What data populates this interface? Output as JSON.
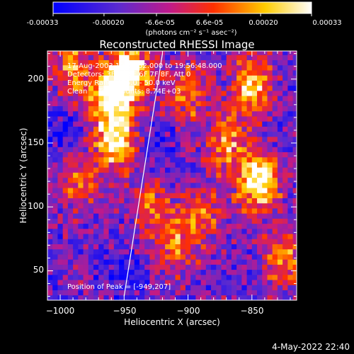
{
  "colorbar": {
    "ticks": [
      "-0.00033",
      "-0.00020",
      "-6.6e-05",
      "6.6e-05",
      "0.00020",
      "0.00033"
    ],
    "unit_label": "(photons cm⁻² s⁻¹ asec⁻²)",
    "range": [
      -0.00033,
      0.00033
    ],
    "colors": [
      "#0000ff",
      "#5a2ad0",
      "#c01a8a",
      "#ff3000",
      "#ffcc00",
      "#ffffff"
    ]
  },
  "info": {
    "line1": "17-Aug-2003 19:50:52.000 to 19:56:48.000",
    "line2": "Detectors: 3F 4F 5F 6F 7F 8F, Att 0",
    "line3": "Energy Range: 25.0 - 50.0 keV",
    "line4": "Clean     Total counts: 8.74E+03",
    "peak": "Position of Peak = [-949,207]"
  },
  "footer": {
    "date": "4-May-2022 22:40"
  },
  "chart_data": {
    "type": "heatmap",
    "title": "Reconstructed RHESSI Image",
    "xlabel": "Heliocentric X (arcsec)",
    "ylabel": "Heliocentric Y (arcsec)",
    "xlim": [
      -1010,
      -815
    ],
    "ylim": [
      27,
      222
    ],
    "xticks": [
      -1000,
      -950,
      -900,
      -850
    ],
    "yticks": [
      50,
      100,
      150,
      200
    ],
    "xtick_labels": [
      "−1000",
      "−950",
      "−900",
      "−850"
    ],
    "ytick_labels": [
      "50",
      "100",
      "150",
      "200"
    ],
    "peak_position": [
      -949,
      207
    ],
    "limb_line": [
      [
        -950,
        30
      ],
      [
        -920,
        220
      ]
    ],
    "hot_regions": [
      {
        "x": -962,
        "y": 185,
        "intensity": 0.9
      },
      {
        "x": -955,
        "y": 150,
        "intensity": 0.85
      },
      {
        "x": -945,
        "y": 205,
        "intensity": 1.0
      },
      {
        "x": -845,
        "y": 120,
        "intensity": 1.0
      },
      {
        "x": -850,
        "y": 195,
        "intensity": 0.8
      },
      {
        "x": -870,
        "y": 150,
        "intensity": 0.6
      },
      {
        "x": -990,
        "y": 210,
        "intensity": 0.6
      },
      {
        "x": -985,
        "y": 120,
        "intensity": 0.55
      },
      {
        "x": -930,
        "y": 100,
        "intensity": 0.5
      },
      {
        "x": -900,
        "y": 190,
        "intensity": 0.55
      },
      {
        "x": -910,
        "y": 70,
        "intensity": 0.5
      },
      {
        "x": -825,
        "y": 60,
        "intensity": 0.6
      },
      {
        "x": -890,
        "y": 95,
        "intensity": 0.5
      }
    ],
    "cold_regions": [
      {
        "x": -950,
        "y": 50,
        "intensity": 0.7
      },
      {
        "x": -1000,
        "y": 160,
        "intensity": 0.6
      },
      {
        "x": -925,
        "y": 145,
        "intensity": 0.5
      }
    ]
  }
}
